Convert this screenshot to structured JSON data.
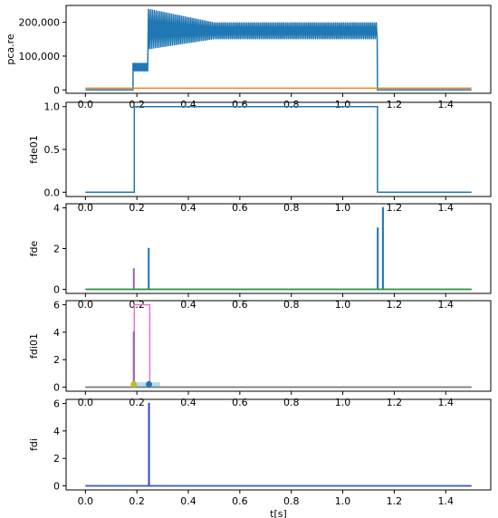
{
  "chart_data": [
    {
      "type": "line",
      "ylabel": "pca.re",
      "xlabel": "",
      "xlim": [
        -0.075,
        1.575
      ],
      "ylim": [
        -10000,
        250000
      ],
      "xticks": [
        0.0,
        0.2,
        0.4,
        0.6,
        0.8,
        1.0,
        1.2,
        1.4
      ],
      "xtick_labels": [
        "0.0",
        "0.2",
        "0.4",
        "0.6",
        "0.8",
        "1.0",
        "1.2",
        "1.4"
      ],
      "yticks": [
        0,
        100000,
        200000
      ],
      "ytick_labels": [
        "0",
        "100,000",
        "200,000"
      ],
      "series": [
        {
          "color": "#1f77b4",
          "style": "oscillating",
          "segments": [
            {
              "x": [
                0.0,
                0.185
              ],
              "y": [
                0,
                0
              ]
            },
            {
              "x": [
                0.185,
                0.245
              ],
              "y_low": 55000,
              "y_high": 80000,
              "osc_period": 0.006
            },
            {
              "x": [
                0.245,
                0.5
              ],
              "y_low_start": 120000,
              "y_low_end": 150000,
              "y_high_start": 240000,
              "y_high_end": 200000,
              "osc_period": 0.0075
            },
            {
              "x": [
                0.5,
                1.135
              ],
              "y_low": 150000,
              "y_high": 200000,
              "osc_period": 0.0075
            },
            {
              "x": [
                1.135,
                1.5
              ],
              "y": [
                0,
                0
              ]
            }
          ]
        },
        {
          "color": "#ff7f0e",
          "points": [
            [
              0.0,
              5000
            ],
            [
              1.5,
              5000
            ]
          ]
        }
      ]
    },
    {
      "type": "line",
      "ylabel": "fde01",
      "xlabel": "",
      "xlim": [
        -0.075,
        1.575
      ],
      "ylim": [
        -0.05,
        1.05
      ],
      "xticks": [
        0.0,
        0.2,
        0.4,
        0.6,
        0.8,
        1.0,
        1.2,
        1.4
      ],
      "xtick_labels": [
        "0.0",
        "0.2",
        "0.4",
        "0.6",
        "0.8",
        "1.0",
        "1.2",
        "1.4"
      ],
      "yticks": [
        0.0,
        0.5,
        1.0
      ],
      "ytick_labels": [
        "0.0",
        "0.5",
        "1.0"
      ],
      "series": [
        {
          "color": "#1f77b4",
          "points": [
            [
              0.0,
              0
            ],
            [
              0.19,
              0
            ],
            [
              0.19,
              1
            ],
            [
              1.135,
              1
            ],
            [
              1.135,
              0
            ],
            [
              1.5,
              0
            ]
          ]
        }
      ]
    },
    {
      "type": "line",
      "ylabel": "fde",
      "xlabel": "",
      "xlim": [
        -0.075,
        1.575
      ],
      "ylim": [
        -0.2,
        4.2
      ],
      "xticks": [
        0.0,
        0.2,
        0.4,
        0.6,
        0.8,
        1.0,
        1.2,
        1.4
      ],
      "xtick_labels": [
        "0.0",
        "0.2",
        "0.4",
        "0.6",
        "0.8",
        "1.0",
        "1.2",
        "1.4"
      ],
      "yticks": [
        0,
        2,
        4
      ],
      "ytick_labels": [
        "0",
        "2",
        "4"
      ],
      "series": [
        {
          "color": "#9467bd",
          "points": [
            [
              0.0,
              0
            ],
            [
              0.187,
              0
            ],
            [
              0.187,
              1
            ],
            [
              0.189,
              1
            ],
            [
              0.189,
              0
            ],
            [
              1.5,
              0
            ]
          ]
        },
        {
          "color": "#1f77b4",
          "points": [
            [
              0.0,
              0
            ],
            [
              0.245,
              0
            ],
            [
              0.245,
              2
            ],
            [
              0.247,
              2
            ],
            [
              0.247,
              0
            ],
            [
              1.135,
              0
            ],
            [
              1.135,
              3
            ],
            [
              1.137,
              3
            ],
            [
              1.137,
              0
            ],
            [
              1.155,
              0
            ],
            [
              1.155,
              4
            ],
            [
              1.157,
              4
            ],
            [
              1.157,
              0
            ],
            [
              1.5,
              0
            ]
          ]
        },
        {
          "color": "#2ca02c",
          "points": [
            [
              0.0,
              0
            ],
            [
              1.5,
              0
            ]
          ]
        }
      ]
    },
    {
      "type": "line",
      "ylabel": "fdi01",
      "xlabel": "",
      "xlim": [
        -0.075,
        1.575
      ],
      "ylim": [
        -0.3,
        6.3
      ],
      "xticks": [
        0.0,
        0.2,
        0.4,
        0.6,
        0.8,
        1.0,
        1.2,
        1.4
      ],
      "xtick_labels": [
        "0.0",
        "0.2",
        "0.4",
        "0.6",
        "0.8",
        "1.0",
        "1.2",
        "1.4"
      ],
      "yticks": [
        0,
        2,
        4,
        6
      ],
      "ytick_labels": [
        "0",
        "2",
        "4",
        "6"
      ],
      "series": [
        {
          "color": "#e377c2",
          "points": [
            [
              0.0,
              0
            ],
            [
              0.19,
              0
            ],
            [
              0.19,
              6
            ],
            [
              0.25,
              6
            ],
            [
              0.25,
              0
            ],
            [
              1.5,
              0
            ]
          ]
        },
        {
          "color": "#9467bd",
          "points": [
            [
              0.0,
              0
            ],
            [
              0.187,
              0
            ],
            [
              0.187,
              4
            ],
            [
              0.189,
              4
            ],
            [
              0.189,
              0
            ],
            [
              1.5,
              0
            ]
          ]
        },
        {
          "color": "#7f7f7f",
          "points": [
            [
              0.0,
              0
            ],
            [
              1.5,
              0
            ]
          ]
        }
      ],
      "markers": [
        {
          "x": 0.188,
          "y": 0.2,
          "color": "#bcbd22"
        },
        {
          "x": 0.247,
          "y": 0.2,
          "color": "#1f77b4"
        }
      ],
      "bands": [
        {
          "x0": 0.19,
          "x1": 0.29,
          "y0": -0.05,
          "y1": 0.35,
          "color": "#9edae5"
        }
      ]
    },
    {
      "type": "line",
      "ylabel": "fdi",
      "xlabel": "t[s]",
      "xlim": [
        -0.075,
        1.575
      ],
      "ylim": [
        -0.3,
        6.3
      ],
      "xticks": [
        0.0,
        0.2,
        0.4,
        0.6,
        0.8,
        1.0,
        1.2,
        1.4
      ],
      "xtick_labels": [
        "0.0",
        "0.2",
        "0.4",
        "0.6",
        "0.8",
        "1.0",
        "1.2",
        "1.4"
      ],
      "yticks": [
        0,
        2,
        4,
        6
      ],
      "ytick_labels": [
        "0",
        "2",
        "4",
        "6"
      ],
      "series": [
        {
          "color": "#1f77b4",
          "points": [
            [
              0.0,
              0
            ],
            [
              1.5,
              0
            ]
          ]
        },
        {
          "color": "#3b4cc0",
          "points": [
            [
              0.0,
              0
            ],
            [
              0.246,
              0
            ],
            [
              0.246,
              6
            ],
            [
              0.248,
              6
            ],
            [
              0.248,
              0
            ],
            [
              1.5,
              0
            ]
          ]
        }
      ]
    }
  ]
}
